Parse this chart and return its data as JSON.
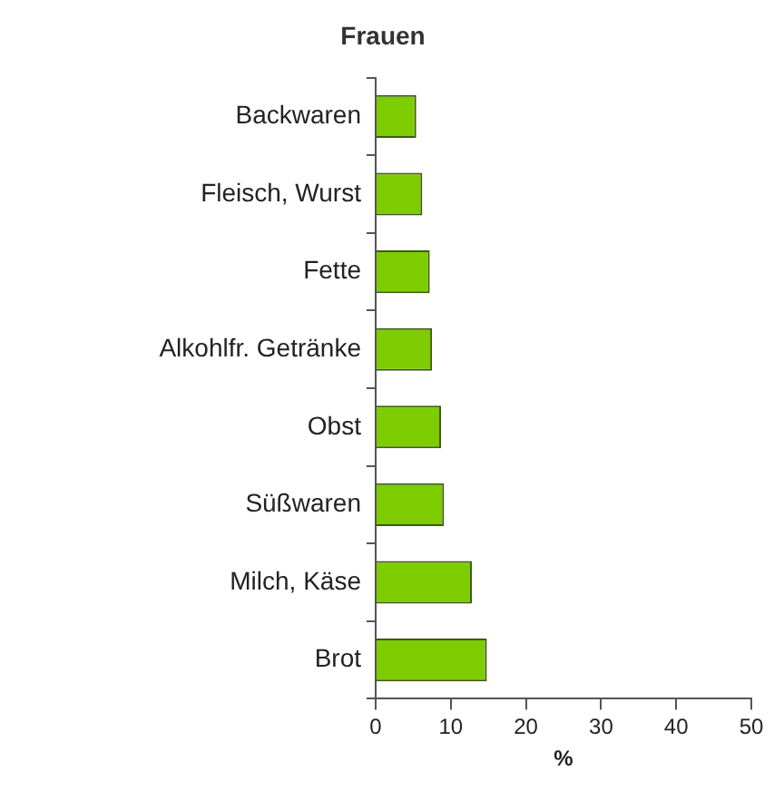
{
  "chart_data": {
    "type": "bar",
    "orientation": "horizontal",
    "title": "Frauen",
    "xlabel": "%",
    "categories": [
      "Backwaren",
      "Fleisch, Wurst",
      "Fette",
      "Alkohlfr. Getränke",
      "Obst",
      "Süßwaren",
      "Milch, Käse",
      "Brot"
    ],
    "values": [
      5.4,
      6.2,
      7.2,
      7.5,
      8.7,
      9.1,
      12.8,
      14.8
    ],
    "color": "#7dcc00",
    "xlim": [
      0,
      50
    ],
    "xticks": [
      0,
      10,
      20,
      30,
      40,
      50
    ],
    "grid": false,
    "legend": false
  }
}
